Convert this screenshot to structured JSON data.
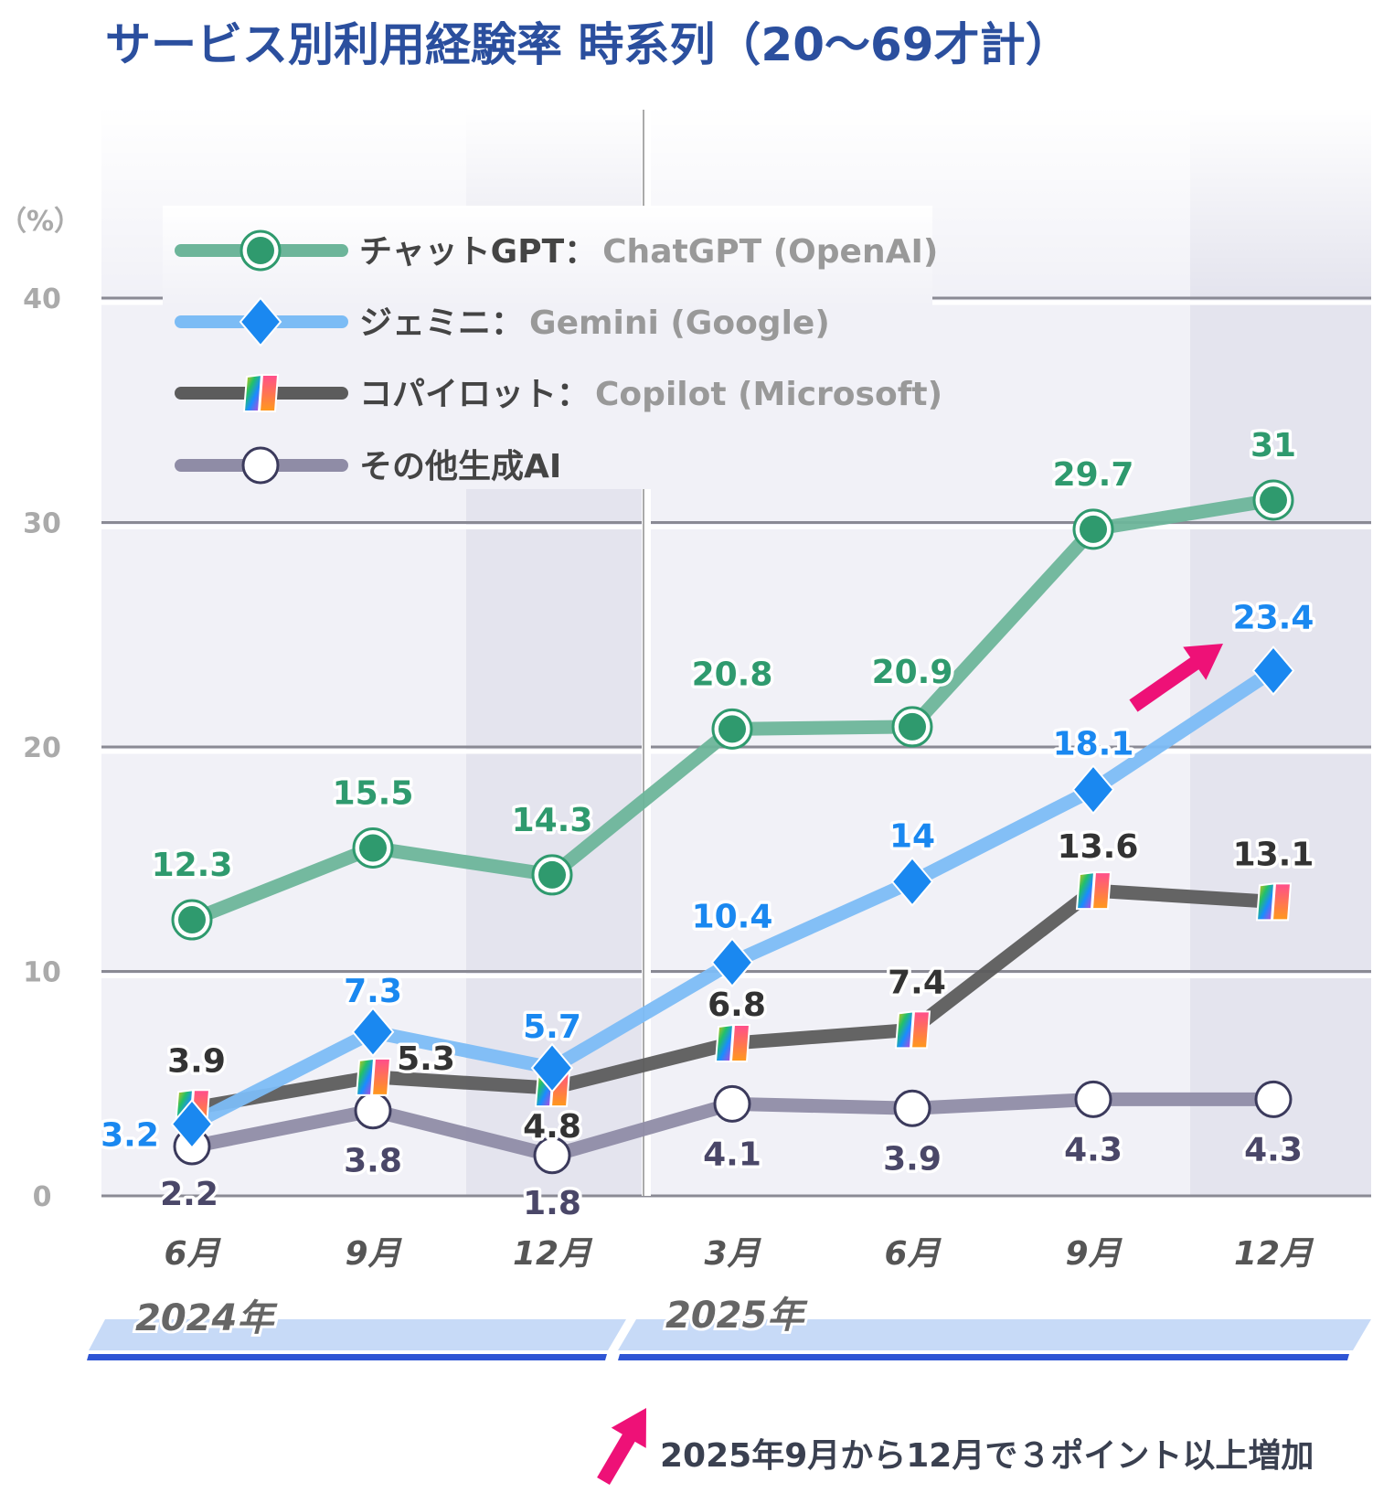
{
  "chart_data": {
    "type": "line",
    "title": "サービス別利用経験率 時系列（20〜69才計）",
    "ylabel": "（%）",
    "ylim": [
      0,
      40
    ],
    "yticks": [
      "0",
      "10",
      "20",
      "30",
      "40"
    ],
    "grid": true,
    "legend_position": "top-left",
    "categories": [
      "6月",
      "9月",
      "12月",
      "3月",
      "6月",
      "9月",
      "12月"
    ],
    "year_groups": [
      {
        "label": "2024年",
        "months": [
          "6月",
          "9月",
          "12月"
        ]
      },
      {
        "label": "2025年",
        "months": [
          "3月",
          "6月",
          "9月",
          "12月"
        ]
      }
    ],
    "series": [
      {
        "name_ja": "チャットGPT：",
        "name_en": "ChatGPT (OpenAI)",
        "color": "#6db59a",
        "marker": "circle-filled",
        "label_color": "#2f9a6e",
        "values": [
          12.3,
          15.5,
          14.3,
          20.8,
          20.9,
          29.7,
          31.0
        ]
      },
      {
        "name_ja": "ジェミニ：",
        "name_en": "Gemini (Google)",
        "color": "#7cbcf5",
        "marker": "diamond",
        "label_color": "#1a88f0",
        "values": [
          3.2,
          7.3,
          5.7,
          10.4,
          14.0,
          18.1,
          23.4
        ]
      },
      {
        "name_ja": "コパイロット：",
        "name_en": "Copilot (Microsoft)",
        "color": "#5c5c5c",
        "marker": "copilot-logo",
        "label_color": "#333333",
        "values": [
          3.9,
          5.3,
          4.8,
          6.8,
          7.4,
          13.6,
          13.1
        ]
      },
      {
        "name_ja": "その他生成AI",
        "name_en": "",
        "color": "#8f8ca6",
        "marker": "circle-open",
        "label_color": "#4a4768",
        "values": [
          2.2,
          3.8,
          1.8,
          4.1,
          3.9,
          4.3,
          4.3
        ]
      }
    ],
    "annotation": "2025年9月から12月で３ポイント以上増加",
    "annotation_color": "#ee1177",
    "title_color": "#2b4f9e"
  }
}
